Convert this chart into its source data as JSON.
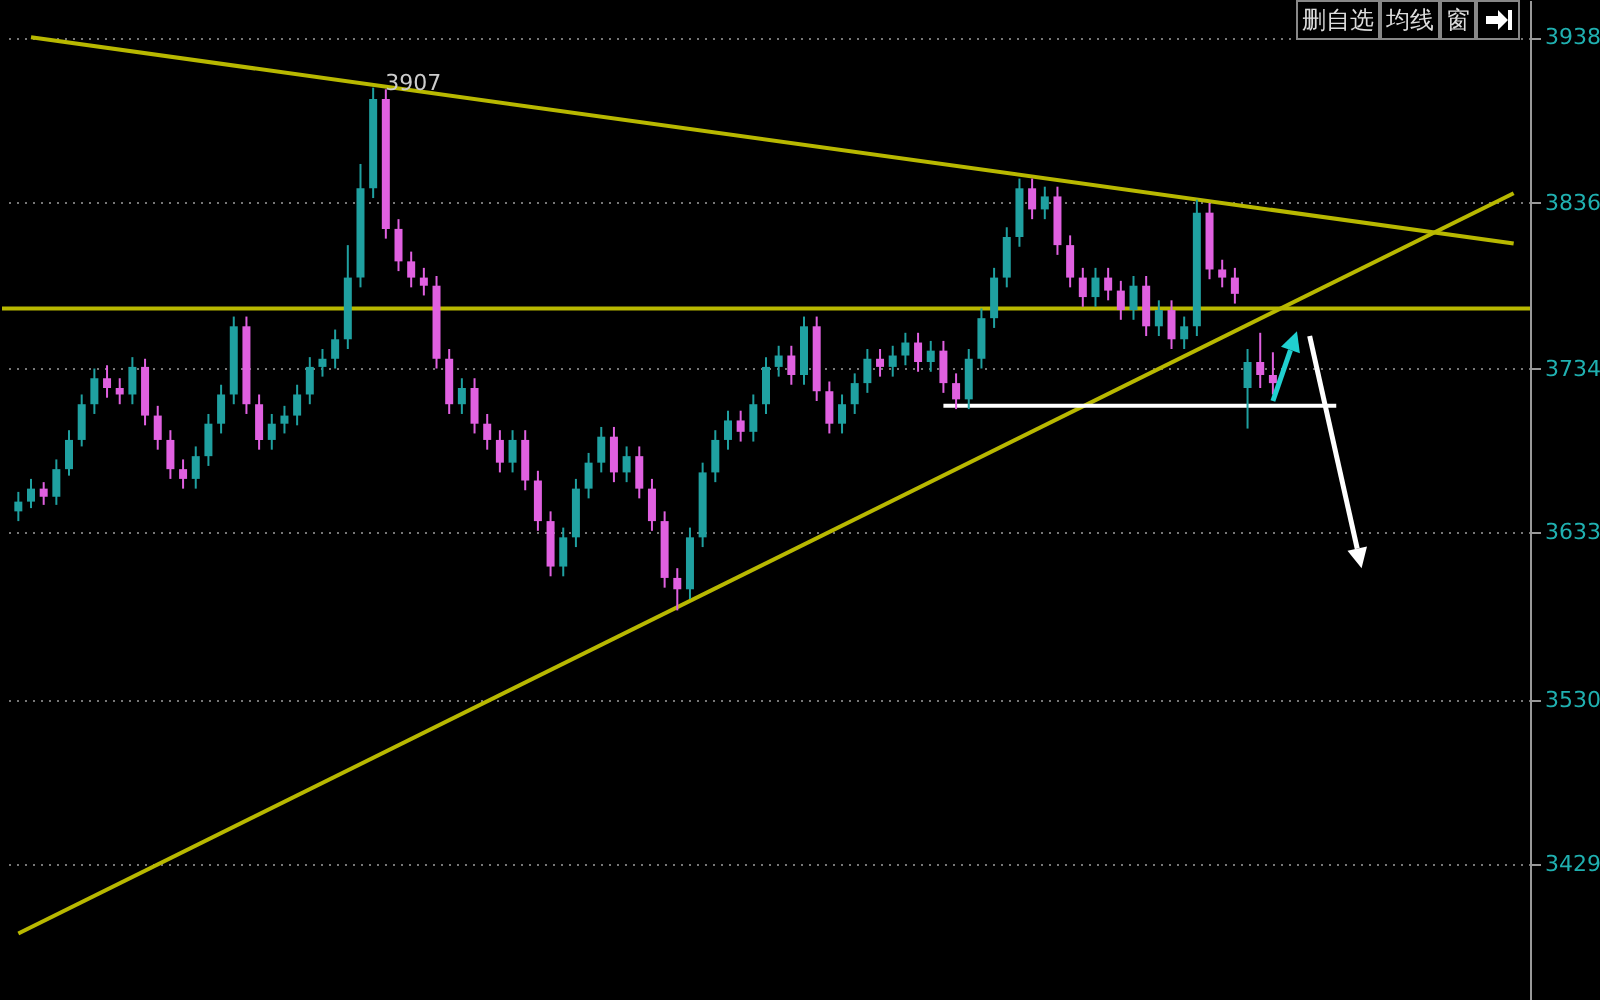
{
  "chart_data": {
    "type": "candlestick",
    "categories": [
      null,
      null,
      null,
      null,
      null,
      null,
      null,
      null,
      null,
      null,
      null,
      null,
      null,
      null,
      null,
      null,
      null,
      null,
      null,
      null,
      null,
      null,
      null,
      null,
      null,
      null,
      null,
      null,
      null,
      null,
      null,
      null,
      null,
      null,
      null,
      null,
      null,
      null,
      null,
      null,
      null,
      null,
      null,
      null,
      null,
      null,
      null,
      null,
      null,
      null,
      null,
      null,
      null,
      null,
      null,
      null,
      null,
      null,
      null,
      null,
      null,
      null,
      null,
      null,
      null,
      null,
      null,
      null,
      null,
      null,
      null,
      null,
      null,
      null,
      null,
      null,
      null,
      null,
      null,
      null,
      null,
      null,
      null,
      null,
      null,
      null,
      null,
      null,
      null,
      null,
      null,
      null,
      null,
      null,
      null,
      null,
      null,
      null,
      null,
      null,
      null,
      null,
      null,
      null,
      null,
      null,
      null,
      null,
      null,
      null,
      null,
      null,
      null,
      null,
      null,
      null,
      null,
      null,
      null
    ],
    "ohlc": [
      [
        3646,
        3658,
        3640,
        3652
      ],
      [
        3652,
        3666,
        3648,
        3660
      ],
      [
        3660,
        3664,
        3650,
        3655
      ],
      [
        3655,
        3678,
        3650,
        3672
      ],
      [
        3672,
        3696,
        3668,
        3690
      ],
      [
        3690,
        3718,
        3686,
        3712
      ],
      [
        3712,
        3734,
        3706,
        3728
      ],
      [
        3728,
        3736,
        3716,
        3722
      ],
      [
        3722,
        3728,
        3712,
        3718
      ],
      [
        3718,
        3741,
        3712,
        3735
      ],
      [
        3735,
        3740,
        3699,
        3705
      ],
      [
        3705,
        3711,
        3684,
        3690
      ],
      [
        3690,
        3696,
        3666,
        3672
      ],
      [
        3672,
        3678,
        3660,
        3666
      ],
      [
        3666,
        3686,
        3660,
        3680
      ],
      [
        3680,
        3706,
        3674,
        3700
      ],
      [
        3700,
        3724,
        3694,
        3718
      ],
      [
        3718,
        3766,
        3712,
        3760
      ],
      [
        3760,
        3766,
        3706,
        3712
      ],
      [
        3712,
        3718,
        3684,
        3690
      ],
      [
        3690,
        3706,
        3684,
        3700
      ],
      [
        3700,
        3711,
        3694,
        3705
      ],
      [
        3705,
        3724,
        3699,
        3718
      ],
      [
        3718,
        3741,
        3712,
        3735
      ],
      [
        3735,
        3746,
        3729,
        3740
      ],
      [
        3740,
        3758,
        3734,
        3752
      ],
      [
        3752,
        3810,
        3746,
        3790
      ],
      [
        3790,
        3860,
        3784,
        3845
      ],
      [
        3845,
        3907,
        3839,
        3900
      ],
      [
        3900,
        3906,
        3814,
        3820
      ],
      [
        3820,
        3826,
        3794,
        3800
      ],
      [
        3800,
        3806,
        3784,
        3790
      ],
      [
        3790,
        3796,
        3779,
        3785
      ],
      [
        3785,
        3791,
        3734,
        3740
      ],
      [
        3740,
        3746,
        3706,
        3712
      ],
      [
        3712,
        3728,
        3706,
        3722
      ],
      [
        3722,
        3728,
        3694,
        3700
      ],
      [
        3700,
        3706,
        3684,
        3690
      ],
      [
        3690,
        3696,
        3670,
        3676
      ],
      [
        3676,
        3696,
        3670,
        3690
      ],
      [
        3690,
        3696,
        3659,
        3665
      ],
      [
        3665,
        3671,
        3634,
        3640
      ],
      [
        3640,
        3646,
        3606,
        3612
      ],
      [
        3612,
        3636,
        3606,
        3630
      ],
      [
        3630,
        3666,
        3624,
        3660
      ],
      [
        3660,
        3682,
        3654,
        3676
      ],
      [
        3676,
        3698,
        3670,
        3692
      ],
      [
        3692,
        3698,
        3664,
        3670
      ],
      [
        3670,
        3686,
        3664,
        3680
      ],
      [
        3680,
        3686,
        3654,
        3660
      ],
      [
        3660,
        3666,
        3634,
        3640
      ],
      [
        3640,
        3646,
        3599,
        3605
      ],
      [
        3605,
        3611,
        3585,
        3598
      ],
      [
        3598,
        3636,
        3592,
        3630
      ],
      [
        3630,
        3676,
        3624,
        3670
      ],
      [
        3670,
        3696,
        3664,
        3690
      ],
      [
        3690,
        3708,
        3684,
        3702
      ],
      [
        3702,
        3708,
        3689,
        3695
      ],
      [
        3695,
        3718,
        3689,
        3712
      ],
      [
        3712,
        3741,
        3706,
        3735
      ],
      [
        3735,
        3748,
        3729,
        3742
      ],
      [
        3742,
        3748,
        3724,
        3730
      ],
      [
        3730,
        3766,
        3724,
        3760
      ],
      [
        3760,
        3766,
        3714,
        3720
      ],
      [
        3720,
        3726,
        3694,
        3700
      ],
      [
        3700,
        3718,
        3694,
        3712
      ],
      [
        3712,
        3731,
        3706,
        3725
      ],
      [
        3725,
        3746,
        3719,
        3740
      ],
      [
        3740,
        3746,
        3729,
        3735
      ],
      [
        3735,
        3748,
        3729,
        3742
      ],
      [
        3742,
        3756,
        3736,
        3750
      ],
      [
        3750,
        3756,
        3732,
        3738
      ],
      [
        3738,
        3751,
        3732,
        3745
      ],
      [
        3745,
        3751,
        3719,
        3725
      ],
      [
        3725,
        3731,
        3709,
        3715
      ],
      [
        3715,
        3746,
        3709,
        3740
      ],
      [
        3740,
        3771,
        3734,
        3765
      ],
      [
        3765,
        3796,
        3759,
        3790
      ],
      [
        3790,
        3821,
        3784,
        3815
      ],
      [
        3815,
        3851,
        3809,
        3845
      ],
      [
        3845,
        3851,
        3826,
        3832
      ],
      [
        3832,
        3846,
        3826,
        3840
      ],
      [
        3840,
        3846,
        3804,
        3810
      ],
      [
        3810,
        3816,
        3784,
        3790
      ],
      [
        3790,
        3796,
        3772,
        3778
      ],
      [
        3778,
        3796,
        3772,
        3790
      ],
      [
        3790,
        3796,
        3776,
        3782
      ],
      [
        3782,
        3788,
        3764,
        3770
      ],
      [
        3770,
        3791,
        3764,
        3785
      ],
      [
        3785,
        3791,
        3754,
        3760
      ],
      [
        3760,
        3776,
        3754,
        3770
      ],
      [
        3770,
        3776,
        3746,
        3752
      ],
      [
        3752,
        3766,
        3746,
        3760
      ],
      [
        3760,
        3838,
        3754,
        3830
      ],
      [
        3830,
        3836,
        3789,
        3795
      ],
      [
        3795,
        3801,
        3784,
        3790
      ],
      [
        3790,
        3796,
        3774,
        3780
      ],
      [
        3722,
        3746,
        3697,
        3738
      ],
      [
        3738,
        3756,
        3722,
        3730
      ],
      [
        3730,
        3744,
        3718,
        3725
      ],
      null,
      null,
      null,
      null,
      null,
      null,
      null,
      null,
      null,
      null,
      null,
      null,
      null,
      null,
      null,
      null,
      null,
      null,
      null
    ],
    "colors": [
      "#1fa0a0",
      "#1fa0a0",
      "#e060e0",
      "#1fa0a0",
      "#1fa0a0",
      "#1fa0a0",
      "#1fa0a0",
      "#e060e0",
      "#e060e0",
      "#1fa0a0",
      "#e060e0",
      "#e060e0",
      "#e060e0",
      "#e060e0",
      "#1fa0a0",
      "#1fa0a0",
      "#1fa0a0",
      "#1fa0a0",
      "#e060e0",
      "#e060e0",
      "#1fa0a0",
      "#1fa0a0",
      "#1fa0a0",
      "#1fa0a0",
      "#1fa0a0",
      "#1fa0a0",
      "#1fa0a0",
      "#1fa0a0",
      "#1fa0a0",
      "#e060e0",
      "#e060e0",
      "#e060e0",
      "#e060e0",
      "#e060e0",
      "#e060e0",
      "#1fa0a0",
      "#e060e0",
      "#e060e0",
      "#e060e0",
      "#1fa0a0",
      "#e060e0",
      "#e060e0",
      "#e060e0",
      "#1fa0a0",
      "#1fa0a0",
      "#1fa0a0",
      "#1fa0a0",
      "#e060e0",
      "#1fa0a0",
      "#e060e0",
      "#e060e0",
      "#e060e0",
      "#e060e0",
      "#1fa0a0",
      "#1fa0a0",
      "#1fa0a0",
      "#1fa0a0",
      "#e060e0",
      "#1fa0a0",
      "#1fa0a0",
      "#1fa0a0",
      "#e060e0",
      "#1fa0a0",
      "#e060e0",
      "#e060e0",
      "#1fa0a0",
      "#1fa0a0",
      "#1fa0a0",
      "#e060e0",
      "#1fa0a0",
      "#1fa0a0",
      "#e060e0",
      "#1fa0a0",
      "#e060e0",
      "#e060e0",
      "#1fa0a0",
      "#1fa0a0",
      "#1fa0a0",
      "#1fa0a0",
      "#1fa0a0",
      "#e060e0",
      "#1fa0a0",
      "#e060e0",
      "#e060e0",
      "#e060e0",
      "#1fa0a0",
      "#e060e0",
      "#e060e0",
      "#1fa0a0",
      "#e060e0",
      "#1fa0a0",
      "#e060e0",
      "#1fa0a0",
      "#1fa0a0",
      "#e060e0",
      "#e060e0",
      "#e060e0",
      "#1fa0a0",
      "#e060e0",
      "#e060e0",
      null,
      null,
      null,
      null,
      null,
      null,
      null,
      null,
      null,
      null,
      null,
      null,
      null,
      null,
      null,
      null,
      null,
      null,
      null
    ],
    "series": [
      {
        "type": "line",
        "color": "#b8b800",
        "values": [
          null,
          3938,
          null,
          null,
          null,
          null,
          null,
          null,
          null,
          null,
          null,
          null,
          null,
          null,
          null,
          null,
          null,
          null,
          null,
          null,
          null,
          null,
          null,
          null,
          null,
          null,
          null,
          null,
          null,
          null,
          null,
          null,
          null,
          null,
          null,
          null,
          null,
          null,
          null,
          null,
          null,
          null,
          null,
          null,
          null,
          null,
          null,
          null,
          null,
          null,
          null,
          null,
          null,
          null,
          null,
          null,
          null,
          null,
          null,
          null,
          null,
          null,
          null,
          null,
          null,
          null,
          null,
          null,
          null,
          null,
          null,
          null,
          null,
          null,
          null,
          null,
          null,
          null,
          null,
          null,
          null,
          null,
          null,
          null,
          null,
          null,
          null,
          null,
          null,
          null,
          null,
          null,
          null,
          null,
          null,
          null,
          null,
          null,
          null,
          null,
          null,
          null,
          null,
          null,
          null,
          null,
          null,
          null,
          null,
          null,
          null,
          null,
          null,
          null,
          null,
          null,
          null,
          null,
          3811
        ]
      },
      {
        "type": "line",
        "color": "#b8b800",
        "values": [
          3386,
          null,
          null,
          null,
          null,
          null,
          null,
          null,
          null,
          null,
          null,
          null,
          null,
          null,
          null,
          null,
          null,
          null,
          null,
          null,
          null,
          null,
          null,
          null,
          null,
          null,
          null,
          null,
          null,
          null,
          null,
          null,
          null,
          null,
          null,
          null,
          null,
          null,
          null,
          null,
          null,
          null,
          null,
          null,
          null,
          null,
          null,
          null,
          null,
          null,
          null,
          null,
          null,
          null,
          null,
          null,
          null,
          null,
          null,
          null,
          null,
          null,
          null,
          null,
          null,
          null,
          null,
          null,
          null,
          null,
          null,
          null,
          null,
          null,
          null,
          null,
          null,
          null,
          null,
          null,
          null,
          null,
          null,
          null,
          null,
          null,
          null,
          null,
          null,
          null,
          null,
          null,
          null,
          null,
          null,
          null,
          null,
          null,
          null,
          null,
          null,
          null,
          null,
          null,
          null,
          null,
          null,
          null,
          null,
          null,
          null,
          null,
          null,
          null,
          null,
          null,
          null,
          null,
          3842
        ]
      },
      {
        "type": "line",
        "color": "#ffffff",
        "values": [
          null,
          null,
          null,
          null,
          null,
          null,
          null,
          null,
          null,
          null,
          null,
          null,
          null,
          null,
          null,
          null,
          null,
          null,
          null,
          null,
          null,
          null,
          null,
          null,
          null,
          null,
          null,
          null,
          null,
          null,
          null,
          null,
          null,
          null,
          null,
          null,
          null,
          null,
          null,
          null,
          null,
          null,
          null,
          null,
          null,
          null,
          null,
          null,
          null,
          null,
          null,
          null,
          null,
          null,
          null,
          null,
          null,
          null,
          null,
          null,
          null,
          null,
          null,
          null,
          null,
          null,
          null,
          null,
          null,
          null,
          null,
          null,
          null,
          3711,
          null,
          null,
          null,
          null,
          null,
          null,
          null,
          null,
          null,
          null,
          null,
          null,
          null,
          null,
          null,
          null,
          null,
          null,
          null,
          null,
          null,
          null,
          null,
          null,
          null,
          null,
          null,
          null,
          null,
          null,
          3711,
          null,
          null,
          null,
          null,
          null,
          null,
          null,
          null,
          null,
          null,
          null,
          null,
          null,
          null
        ]
      }
    ],
    "ref_lines": [
      {
        "axis": "y",
        "value": 3771,
        "color": "#b8b800"
      }
    ],
    "annotations": [
      {
        "text": "3907",
        "y": 3907
      },
      "删自选",
      "均线",
      "窗"
    ],
    "ylim": [
      3345,
      3961
    ],
    "yticks": [
      3938,
      3836,
      3734,
      3633,
      3530,
      3429
    ],
    "tick_labels": "y",
    "grid": "y"
  }
}
